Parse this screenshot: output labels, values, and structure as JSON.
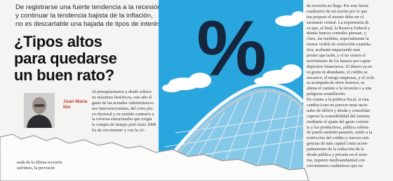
{
  "header": {
    "deck": [
      "De registrarse una fuerte tendencia a la recesión",
      "y continuar la tendencia bajista de la inflación,",
      "no es descartable una bajada de tipos de interés."
    ],
    "title": [
      "¿Tipos altos",
      "para quedarse",
      "un buen rato?"
    ]
  },
  "author": {
    "name": [
      "Juan María",
      "Nin"
    ]
  },
  "illustration": {
    "symbol": "%"
  },
  "columns": [
    {
      "lines": [
        "ch presupuestarios y desde sobera-",
        "no máximos históricos, este año el",
        "gasto de las actuales Administracio-",
        "nes intervencionistas, del corto pla-",
        "zo electoral y en sentido contrario a",
        "la reforma estructurales que exigía",
        "la compra de tiempo post crisis 2008.",
        "Es de crecimiento y con la cri-"
      ]
    },
    {
      "lines": [
        "da recesión no llega. Por este factor",
        "cualitativo de mi escrito por lo que",
        "me propuse el mismo debe ser el",
        "escenario central. La experiencia di-",
        "ce que, al final, la Reserva Federal y",
        "demás bancos centrales piensan, y,",
        "claro, las medidas, especialmente la",
        "menor visible de restricción cuantita-",
        "tiva, acabarán impactando más",
        "pronto que tarde, y si no vemos el",
        "movimiento de los bancos por captar",
        "depósitos financieros. El dinero ya no",
        "es gratis ni abundante, el crédito se",
        "encarece, el riesgo empresas, y el ciclo",
        "se acompaña de otros factores, se",
        "aliena el camino a la recesión o a una",
        "peligrosa estanflación.",
        "En cuanto a la política fiscal, si esta",
        "cambia (cara no parecer unas racio-",
        "nales de déficit y deuda y consolidar",
        "cuperar la sostenibilidad del sistema",
        "mediante el ajuste del gasto corrien-",
        "te y los productivos, pública sobera-",
        "do puede también pasando, unido a la",
        "restricción del crédito y nuevos estí-",
        "gencias de más capital como acom-",
        "pañamiento de la reducción de la",
        "deuda pública y privada en el siste-",
        "ma, requiere medioambiental con",
        "crecimientos cualitativos que no"
      ]
    },
    {
      "lines": [
        "nada de la última recesión",
        "sufrimos, la previsión"
      ]
    }
  ]
}
